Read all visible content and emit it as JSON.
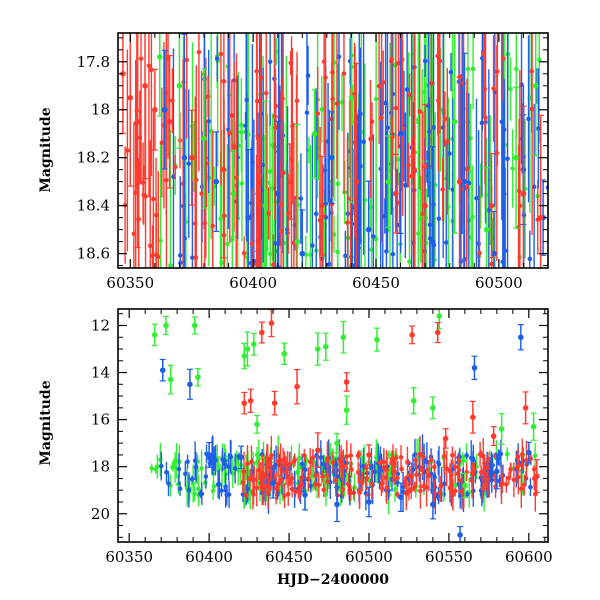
{
  "colors": {
    "green": "#33ee33",
    "blue": "#1f5fe8",
    "red": "#ff3b2f",
    "axis": "#000000"
  },
  "chart_data": [
    {
      "type": "scatter",
      "ylabel": "Magnitude",
      "xlabel": "",
      "xlim": [
        60345,
        60520
      ],
      "ylim": [
        17.68,
        18.66
      ],
      "y_inverted": true,
      "x_ticks": [
        60350,
        60400,
        60450,
        60500
      ],
      "y_ticks": [
        17.8,
        18,
        18.2,
        18.4,
        18.6
      ],
      "y_tick_labels": [
        "17.8",
        "18",
        "18.2",
        "18.4",
        "18.6"
      ],
      "x_tick_labels": [
        "60350",
        "60400",
        "60450",
        "60500"
      ],
      "series": [
        {
          "color": "green",
          "points": [
            [
              60362,
              17.78
            ],
            [
              60370,
              17.9
            ],
            [
              60380,
              18.12
            ],
            [
              60392,
              18.35
            ],
            [
              60405,
              18.4
            ],
            [
              60418,
              18.55
            ],
            [
              60425,
              18.1
            ],
            [
              60440,
              17.95
            ],
            [
              60455,
              18.3
            ],
            [
              60470,
              18.45
            ],
            [
              60482,
              18.05
            ],
            [
              60495,
              18.5
            ],
            [
              60507,
              18.2
            ],
            [
              60515,
              17.9
            ]
          ]
        },
        {
          "color": "blue",
          "points": [
            [
              60364,
              18.0
            ],
            [
              60372,
              18.2
            ],
            [
              60385,
              18.3
            ],
            [
              60398,
              18.45
            ],
            [
              60410,
              18.35
            ],
            [
              60420,
              18.6
            ],
            [
              60432,
              18.2
            ],
            [
              60447,
              18.5
            ],
            [
              60460,
              18.1
            ],
            [
              60473,
              18.55
            ],
            [
              60486,
              18.3
            ],
            [
              60498,
              18.6
            ],
            [
              60510,
              18.25
            ],
            [
              60518,
              18.45
            ]
          ]
        },
        {
          "color": "red",
          "points": [
            [
              60347,
              17.85
            ],
            [
              60350,
              17.95
            ],
            [
              60353,
              18.05
            ],
            [
              60356,
              17.9
            ],
            [
              60360,
              18.0
            ],
            [
              60366,
              18.05
            ],
            [
              60375,
              18.2
            ],
            [
              60388,
              18.25
            ],
            [
              60402,
              18.35
            ],
            [
              60415,
              18.3
            ],
            [
              60428,
              18.4
            ],
            [
              60442,
              18.3
            ],
            [
              60458,
              18.35
            ],
            [
              60470,
              18.4
            ],
            [
              60484,
              18.3
            ],
            [
              60497,
              18.4
            ],
            [
              60510,
              18.35
            ],
            [
              60517,
              18.45
            ]
          ]
        }
      ]
    },
    {
      "type": "scatter",
      "ylabel": "Magnitude",
      "xlabel": "HJD−2400000",
      "xlim": [
        60343,
        60612
      ],
      "ylim": [
        11.3,
        21.2
      ],
      "y_inverted": true,
      "x_ticks": [
        60350,
        60400,
        60450,
        60500,
        60550,
        60600
      ],
      "y_ticks": [
        12,
        14,
        16,
        18,
        20
      ],
      "x_tick_labels": [
        "60350",
        "60400",
        "60450",
        "60500",
        "60550",
        "60600"
      ],
      "y_tick_labels": [
        "12",
        "14",
        "16",
        "18",
        "20"
      ],
      "series": [
        {
          "color": "green",
          "points": [
            [
              60366,
              12.4
            ],
            [
              60373,
              12.0
            ],
            [
              60376,
              14.3
            ],
            [
              60391,
              12.0
            ],
            [
              60393,
              14.2
            ],
            [
              60422,
              13.3
            ],
            [
              60424,
              13.0
            ],
            [
              60428,
              12.8
            ],
            [
              60430,
              16.2
            ],
            [
              60447,
              13.2
            ],
            [
              60468,
              13.0
            ],
            [
              60473,
              12.9
            ],
            [
              60480,
              17.0
            ],
            [
              60484,
              12.5
            ],
            [
              60486,
              15.6
            ],
            [
              60505,
              12.6
            ],
            [
              60528,
              15.2
            ],
            [
              60540,
              15.5
            ],
            [
              60544,
              11.6
            ],
            [
              60560,
              18.8
            ],
            [
              60583,
              16.4
            ],
            [
              60603,
              16.3
            ]
          ]
        },
        {
          "color": "blue",
          "points": [
            [
              60371,
              13.9
            ],
            [
              60388,
              14.5
            ],
            [
              60400,
              17.5
            ],
            [
              60420,
              17.6
            ],
            [
              60440,
              18.7
            ],
            [
              60460,
              19.2
            ],
            [
              60480,
              19.6
            ],
            [
              60500,
              19.5
            ],
            [
              60520,
              19.3
            ],
            [
              60540,
              19.6
            ],
            [
              60557,
              20.9
            ],
            [
              60566,
              13.8
            ],
            [
              60580,
              18.2
            ],
            [
              60595,
              12.5
            ],
            [
              60600,
              17.4
            ]
          ]
        },
        {
          "color": "red",
          "points": [
            [
              60422,
              15.3
            ],
            [
              60426,
              15.2
            ],
            [
              60433,
              12.3
            ],
            [
              60439,
              11.9
            ],
            [
              60441,
              15.3
            ],
            [
              60455,
              14.6
            ],
            [
              60468,
              17.3
            ],
            [
              60486,
              14.4
            ],
            [
              60500,
              17.5
            ],
            [
              60527,
              12.4
            ],
            [
              60543,
              12.3
            ],
            [
              60548,
              16.8
            ],
            [
              60565,
              15.9
            ],
            [
              60578,
              16.7
            ],
            [
              60598,
              15.5
            ],
            [
              60605,
              18.4
            ]
          ]
        }
      ]
    }
  ]
}
